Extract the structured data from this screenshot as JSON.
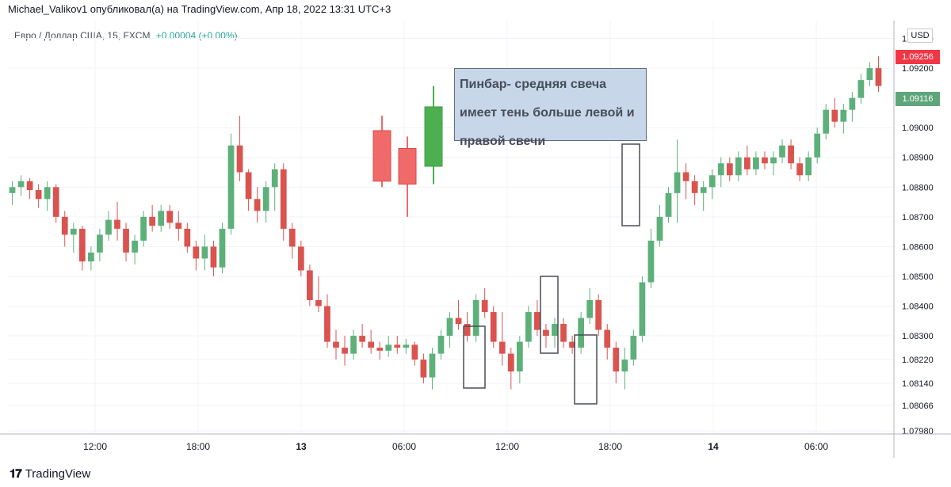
{
  "header": {
    "caption": "Michael_Valikov1 опубликовал(а) на TradingView.com, Апр 18, 2022 13:31 UTC+3"
  },
  "symbol": {
    "name": "Евро / Доллар США, 15, FXCM",
    "change": "+0.00004 (+0.00%)"
  },
  "note": {
    "line1": "Пинбар- средняя свеча",
    "line2": "имеет тень больше  левой и",
    "line3": "правой свечи"
  },
  "currency": "USD",
  "badges": {
    "red_price": "1.09256",
    "green_price": "1.09116"
  },
  "footer": {
    "brand": "TradingView"
  },
  "colors": {
    "up": "#26a69a",
    "down": "#ef5350",
    "up_fill": "#5db07a",
    "down_fill": "#d9534f",
    "grid": "#f0f3fa",
    "badge_red": "#f23645",
    "badge_green": "#5fa57a"
  },
  "chart_data": {
    "type": "candlestick",
    "title": "",
    "y_ticks": [
      "1.09300",
      "1.09200",
      "1.09000",
      "1.08900",
      "1.08800",
      "1.08700",
      "1.08600",
      "1.08500",
      "1.08400",
      "1.08300",
      "1.08220",
      "1.08140",
      "1.08066",
      "1.07980"
    ],
    "x_ticks": [
      "12:00",
      "18:00",
      "13",
      "06:00",
      "12:00",
      "18:00",
      "14",
      "06:00"
    ],
    "ylim": [
      1.0797,
      1.0936
    ],
    "candles": [
      [
        1.0878,
        1.0882,
        1.0874,
        1.088
      ],
      [
        1.088,
        1.0884,
        1.0877,
        1.0882
      ],
      [
        1.0882,
        1.0883,
        1.0876,
        1.0879
      ],
      [
        1.0879,
        1.0881,
        1.0873,
        1.0876
      ],
      [
        1.0876,
        1.0882,
        1.0872,
        1.088
      ],
      [
        1.088,
        1.0881,
        1.0868,
        1.087
      ],
      [
        1.087,
        1.0872,
        1.086,
        1.0864
      ],
      [
        1.0864,
        1.0868,
        1.0858,
        1.0866
      ],
      [
        1.0866,
        1.0867,
        1.0852,
        1.0855
      ],
      [
        1.0855,
        1.086,
        1.0852,
        1.0858
      ],
      [
        1.0858,
        1.0866,
        1.0855,
        1.0864
      ],
      [
        1.0864,
        1.0872,
        1.0862,
        1.0869
      ],
      [
        1.0869,
        1.0875,
        1.0862,
        1.0866
      ],
      [
        1.0866,
        1.0868,
        1.0855,
        1.0858
      ],
      [
        1.0858,
        1.0864,
        1.0854,
        1.0862
      ],
      [
        1.0862,
        1.0872,
        1.086,
        1.087
      ],
      [
        1.087,
        1.0874,
        1.0865,
        1.0867
      ],
      [
        1.0867,
        1.0874,
        1.0865,
        1.0872
      ],
      [
        1.0872,
        1.0874,
        1.0866,
        1.0868
      ],
      [
        1.0868,
        1.0872,
        1.0862,
        1.0866
      ],
      [
        1.0866,
        1.0868,
        1.0858,
        1.086
      ],
      [
        1.086,
        1.0862,
        1.0852,
        1.0856
      ],
      [
        1.0856,
        1.0864,
        1.0852,
        1.086
      ],
      [
        1.086,
        1.0862,
        1.085,
        1.0853
      ],
      [
        1.0853,
        1.0868,
        1.0851,
        1.0866
      ],
      [
        1.0866,
        1.0898,
        1.0864,
        1.0894
      ],
      [
        1.0894,
        1.0904,
        1.0882,
        1.0885
      ],
      [
        1.0885,
        1.0886,
        1.0872,
        1.0876
      ],
      [
        1.0876,
        1.088,
        1.0868,
        1.0872
      ],
      [
        1.0872,
        1.0882,
        1.0868,
        1.088
      ],
      [
        1.088,
        1.0888,
        1.0872,
        1.0886
      ],
      [
        1.0886,
        1.0888,
        1.0862,
        1.0866
      ],
      [
        1.0866,
        1.0868,
        1.0856,
        1.086
      ],
      [
        1.086,
        1.0862,
        1.085,
        1.0852
      ],
      [
        1.0852,
        1.0854,
        1.084,
        1.0842
      ],
      [
        1.0842,
        1.085,
        1.0838,
        1.084
      ],
      [
        1.084,
        1.0844,
        1.0826,
        1.0828
      ],
      [
        1.0828,
        1.0832,
        1.0822,
        1.0826
      ],
      [
        1.0826,
        1.083,
        1.082,
        1.0824
      ],
      [
        1.0824,
        1.0832,
        1.0822,
        1.083
      ],
      [
        1.083,
        1.0834,
        1.0826,
        1.0828
      ],
      [
        1.0828,
        1.0832,
        1.0824,
        1.0826
      ],
      [
        1.0826,
        1.0828,
        1.0822,
        1.0825
      ],
      [
        1.0825,
        1.083,
        1.0823,
        1.0827
      ],
      [
        1.0827,
        1.083,
        1.0824,
        1.0826
      ],
      [
        1.0826,
        1.0829,
        1.0824,
        1.0827
      ],
      [
        1.0827,
        1.0828,
        1.082,
        1.0822
      ],
      [
        1.0822,
        1.0824,
        1.0814,
        1.0816
      ],
      [
        1.0816,
        1.0826,
        1.0812,
        1.0824
      ],
      [
        1.0824,
        1.0832,
        1.0822,
        1.083
      ],
      [
        1.083,
        1.0838,
        1.0826,
        1.0836
      ],
      [
        1.0836,
        1.0842,
        1.0832,
        1.0834
      ],
      [
        1.0834,
        1.0838,
        1.0828,
        1.083
      ],
      [
        1.083,
        1.0844,
        1.0828,
        1.0842
      ],
      [
        1.0842,
        1.0846,
        1.0836,
        1.0838
      ],
      [
        1.0838,
        1.084,
        1.0826,
        1.0828
      ],
      [
        1.0828,
        1.0838,
        1.082,
        1.0824
      ],
      [
        1.0824,
        1.0826,
        1.0812,
        1.0818
      ],
      [
        1.0818,
        1.083,
        1.0814,
        1.0828
      ],
      [
        1.0828,
        1.084,
        1.0826,
        1.0838
      ],
      [
        1.0838,
        1.0842,
        1.083,
        1.0832
      ],
      [
        1.0832,
        1.0834,
        1.0826,
        1.083
      ],
      [
        1.083,
        1.0836,
        1.0826,
        1.0834
      ],
      [
        1.0834,
        1.0836,
        1.0826,
        1.0828
      ],
      [
        1.0828,
        1.083,
        1.0824,
        1.0826
      ],
      [
        1.0826,
        1.0838,
        1.0824,
        1.0836
      ],
      [
        1.0836,
        1.0846,
        1.0834,
        1.0842
      ],
      [
        1.0842,
        1.0844,
        1.083,
        1.0832
      ],
      [
        1.0832,
        1.0834,
        1.0822,
        1.0826
      ],
      [
        1.0826,
        1.0828,
        1.0814,
        1.0818
      ],
      [
        1.0818,
        1.0826,
        1.0812,
        1.0822
      ],
      [
        1.0822,
        1.0832,
        1.082,
        1.083
      ],
      [
        1.083,
        1.085,
        1.0828,
        1.0848
      ],
      [
        1.0848,
        1.0866,
        1.0846,
        1.0862
      ],
      [
        1.0862,
        1.0874,
        1.086,
        1.087
      ],
      [
        1.087,
        1.088,
        1.0868,
        1.0878
      ],
      [
        1.0878,
        1.0896,
        1.0868,
        1.0885
      ],
      [
        1.0885,
        1.0888,
        1.0876,
        1.0882
      ],
      [
        1.0882,
        1.0884,
        1.0874,
        1.0878
      ],
      [
        1.0878,
        1.0882,
        1.0872,
        1.088
      ],
      [
        1.088,
        1.0886,
        1.0876,
        1.0884
      ],
      [
        1.0884,
        1.089,
        1.088,
        1.0888
      ],
      [
        1.0888,
        1.089,
        1.0882,
        1.0884
      ],
      [
        1.0884,
        1.0892,
        1.0882,
        1.089
      ],
      [
        1.089,
        1.0894,
        1.0884,
        1.0886
      ],
      [
        1.0886,
        1.0892,
        1.0884,
        1.089
      ],
      [
        1.089,
        1.0892,
        1.0886,
        1.0888
      ],
      [
        1.0888,
        1.0892,
        1.0884,
        1.089
      ],
      [
        1.089,
        1.0896,
        1.0888,
        1.0894
      ],
      [
        1.0894,
        1.0896,
        1.0886,
        1.0888
      ],
      [
        1.0888,
        1.089,
        1.0882,
        1.0884
      ],
      [
        1.0884,
        1.0892,
        1.0882,
        1.089
      ],
      [
        1.089,
        1.09,
        1.0888,
        1.0898
      ],
      [
        1.0898,
        1.0908,
        1.0896,
        1.0906
      ],
      [
        1.0906,
        1.091,
        1.09,
        1.0902
      ],
      [
        1.0902,
        1.0908,
        1.0898,
        1.0906
      ],
      [
        1.0906,
        1.0912,
        1.0902,
        1.091
      ],
      [
        1.091,
        1.0918,
        1.0908,
        1.0916
      ],
      [
        1.0916,
        1.0922,
        1.0914,
        1.092
      ],
      [
        1.092,
        1.0924,
        1.0912,
        1.0914
      ]
    ]
  }
}
